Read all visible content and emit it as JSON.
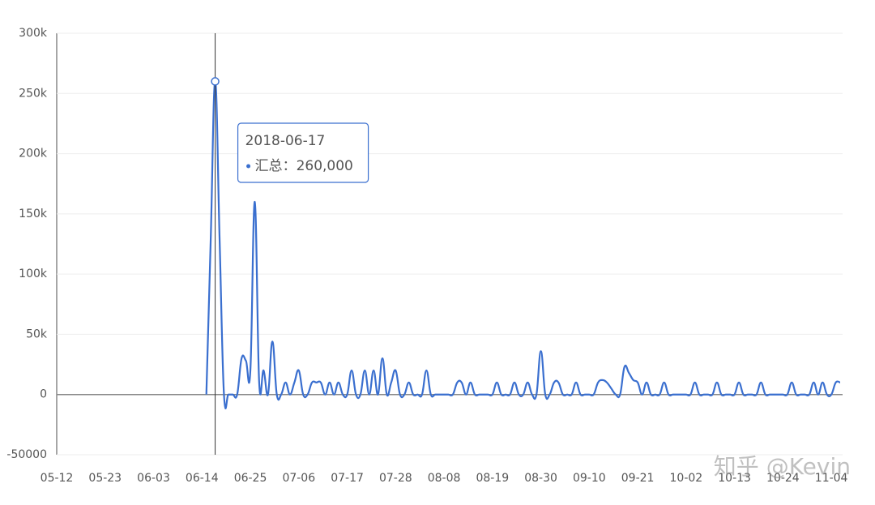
{
  "chart_data": {
    "type": "line",
    "categories": [
      "05-12",
      null,
      null,
      null,
      null,
      null,
      null,
      null,
      null,
      null,
      null,
      "05-23",
      null,
      null,
      null,
      null,
      null,
      null,
      null,
      null,
      null,
      null,
      "06-03",
      null,
      null,
      null,
      null,
      null,
      null,
      null,
      null,
      null,
      null,
      "06-14",
      null,
      null,
      null,
      null,
      null,
      null,
      null,
      null,
      null,
      null,
      "06-25",
      null,
      null,
      null,
      null,
      null,
      null,
      null,
      null,
      null,
      null,
      "07-06",
      null,
      null,
      null,
      null,
      null,
      null,
      null,
      null,
      null,
      null,
      "07-17",
      null,
      null,
      null,
      null,
      null,
      null,
      null,
      null,
      null,
      null,
      "07-28",
      null,
      null,
      null,
      null,
      null,
      null,
      null,
      null,
      null,
      null,
      "08-08",
      null,
      null,
      null,
      null,
      null,
      null,
      null,
      null,
      null,
      null,
      "08-19",
      null,
      null,
      null,
      null,
      null,
      null,
      null,
      null,
      null,
      null,
      "08-30",
      null,
      null,
      null,
      null,
      null,
      null,
      null,
      null,
      null,
      null,
      "09-10",
      null,
      null,
      null,
      null,
      null,
      null,
      null,
      null,
      null,
      null,
      "09-21",
      null,
      null,
      null,
      null,
      null,
      null,
      null,
      null,
      null,
      null,
      "10-02",
      null,
      null,
      null,
      null,
      null,
      null,
      null,
      null,
      null,
      null,
      "10-13",
      null,
      null,
      null,
      null,
      null,
      null,
      null,
      null,
      null,
      null,
      "10-24",
      null,
      null,
      null,
      null,
      null,
      null,
      null,
      null,
      null,
      null,
      "11-04",
      null,
      null
    ],
    "series": [
      {
        "name": "汇总",
        "color": "#3a6fcf",
        "values": [
          null,
          null,
          null,
          null,
          null,
          null,
          null,
          null,
          null,
          null,
          null,
          null,
          null,
          null,
          null,
          null,
          null,
          null,
          null,
          null,
          null,
          null,
          null,
          null,
          null,
          null,
          null,
          null,
          null,
          null,
          null,
          null,
          null,
          null,
          0,
          130000,
          260000,
          130000,
          0,
          0,
          0,
          0,
          30000,
          28000,
          20000,
          160000,
          10000,
          20000,
          0,
          44000,
          0,
          0,
          10000,
          0,
          10000,
          20000,
          0,
          0,
          10000,
          10000,
          10000,
          0,
          10000,
          0,
          10000,
          0,
          0,
          20000,
          0,
          0,
          20000,
          0,
          20000,
          0,
          30000,
          0,
          10000,
          20000,
          0,
          0,
          10000,
          0,
          0,
          0,
          20000,
          0,
          0,
          0,
          0,
          0,
          0,
          10000,
          10000,
          0,
          10000,
          0,
          0,
          0,
          0,
          0,
          10000,
          0,
          0,
          0,
          10000,
          0,
          0,
          10000,
          0,
          0,
          36000,
          0,
          0,
          10000,
          10000,
          0,
          0,
          0,
          10000,
          0,
          0,
          0,
          0,
          10000,
          12000,
          10000,
          5000,
          0,
          0,
          23000,
          18000,
          12000,
          10000,
          0,
          10000,
          0,
          0,
          0,
          10000,
          0,
          0,
          0,
          0,
          0,
          0,
          10000,
          0,
          0,
          0,
          0,
          10000,
          0,
          0,
          0,
          0,
          10000,
          0,
          0,
          0,
          0,
          10000,
          0,
          0,
          0,
          0,
          0,
          0,
          10000,
          0,
          0,
          0,
          0,
          10000,
          0,
          10000,
          0,
          0,
          10000,
          10000
        ],
        "value_labels": [
          null,
          null,
          null,
          null,
          null,
          null,
          null,
          null,
          null,
          null,
          null,
          null,
          null,
          null,
          null,
          null,
          null,
          null,
          null,
          null,
          null,
          null,
          null,
          null,
          null,
          null,
          null,
          null,
          null,
          null,
          null,
          null,
          null,
          null,
          null,
          null,
          "260,000",
          null,
          null,
          null,
          null,
          null,
          null,
          null,
          null,
          null,
          null,
          null,
          null,
          null,
          null,
          null,
          null,
          null,
          null,
          null,
          null,
          null,
          null,
          null,
          null,
          null,
          null,
          null,
          null,
          null,
          null,
          null,
          null,
          null,
          null,
          null,
          null,
          null,
          null,
          null,
          null,
          null,
          null,
          null,
          null,
          null,
          null,
          null,
          null,
          null,
          null,
          null,
          null,
          null,
          null,
          null,
          null,
          null,
          null,
          null,
          null,
          null,
          null,
          null,
          null,
          null,
          null,
          null,
          null,
          null,
          null,
          null,
          null,
          null,
          null,
          null,
          null,
          null,
          null,
          null,
          null,
          null,
          null,
          null,
          null,
          null,
          null,
          null,
          null,
          null,
          null,
          null,
          null,
          null,
          null,
          null,
          null,
          null,
          null,
          null,
          null,
          null,
          null,
          null,
          null,
          null,
          null,
          null,
          null,
          null,
          null,
          null,
          null,
          null,
          null,
          null,
          null,
          null,
          null,
          null,
          null,
          null,
          null,
          null,
          null,
          null,
          null,
          null,
          null,
          null,
          null,
          null,
          null,
          null,
          null,
          null,
          null,
          null,
          null,
          null,
          null,
          null,
          null
        ]
      }
    ],
    "tooltip_title": "2018-06-17",
    "tooltip_separator": "：",
    "ylim": [
      -50000,
      300000
    ],
    "yticks": [
      -50000,
      0,
      {
        "value": 50000,
        "label": "50k"
      },
      {
        "value": 100000,
        "label": "100k"
      },
      {
        "value": 150000,
        "label": "150k"
      },
      {
        "value": 200000,
        "label": "200k"
      },
      {
        "value": 250000,
        "label": "250k"
      },
      {
        "value": 300000,
        "label": "300k"
      }
    ],
    "grid": true,
    "watermark": "知乎 @Kevin"
  }
}
